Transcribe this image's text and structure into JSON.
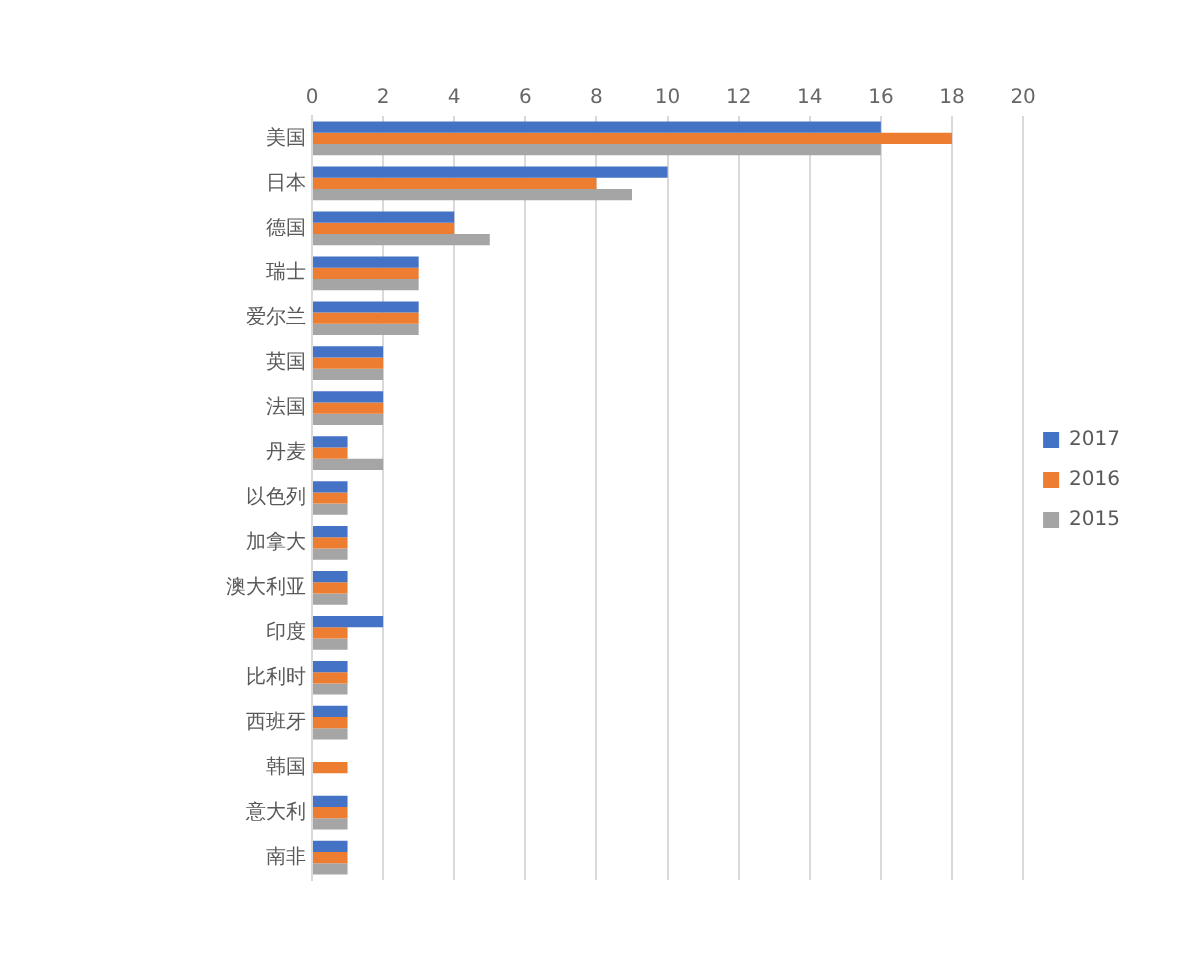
{
  "chart_data": {
    "type": "bar",
    "orientation": "horizontal",
    "categories": [
      "美国",
      "日本",
      "德国",
      "瑞士",
      "爱尔兰",
      "英国",
      "法国",
      "丹麦",
      "以色列",
      "加拿大",
      "澳大利亚",
      "印度",
      "比利时",
      "西班牙",
      "韩国",
      "意大利",
      "南非"
    ],
    "series": [
      {
        "name": "2017",
        "color": "#4472c4",
        "values": [
          16,
          10,
          4,
          3,
          3,
          2,
          2,
          1,
          1,
          1,
          1,
          2,
          1,
          1,
          0,
          1,
          1
        ]
      },
      {
        "name": "2016",
        "color": "#ed7d31",
        "values": [
          18,
          8,
          4,
          3,
          3,
          2,
          2,
          1,
          1,
          1,
          1,
          1,
          1,
          1,
          1,
          1,
          1
        ]
      },
      {
        "name": "2015",
        "color": "#a5a5a5",
        "values": [
          16,
          9,
          5,
          3,
          3,
          2,
          2,
          2,
          1,
          1,
          1,
          1,
          1,
          1,
          0,
          1,
          1
        ]
      }
    ],
    "xlim": [
      0,
      20
    ],
    "xticks": [
      0,
      2,
      4,
      6,
      8,
      10,
      12,
      14,
      16,
      18,
      20
    ],
    "grid": "x",
    "legend": "right"
  }
}
